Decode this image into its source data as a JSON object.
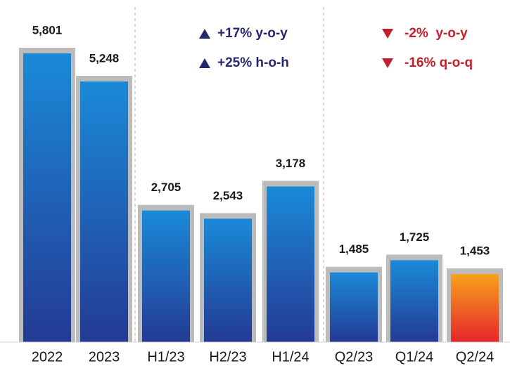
{
  "chart_data": {
    "type": "bar",
    "categories": [
      "2022",
      "2023",
      "H1/23",
      "H2/23",
      "H1/24",
      "Q2/23",
      "Q1/24",
      "Q2/24"
    ],
    "values": [
      5801,
      5248,
      2705,
      2543,
      3178,
      1485,
      1725,
      1453
    ],
    "value_labels": [
      "5,801",
      "5,248",
      "2,705",
      "2,543",
      "3,178",
      "1,485",
      "1,725",
      "1,453"
    ],
    "colors": [
      "#1a8ad8",
      "#1a8ad8",
      "#1a8ad8",
      "#1a8ad8",
      "#1a8ad8",
      "#1a8ad8",
      "#1a8ad8",
      "#f7a21c"
    ],
    "bottom_colors": [
      "#243a94",
      "#243a94",
      "#243a94",
      "#243a94",
      "#243a94",
      "#243a94",
      "#243a94",
      "#e6252b"
    ],
    "annotations": [
      "+17% y-o-y",
      "+25% h-o-h",
      "-2%  y-o-y",
      "-16% q-o-q"
    ]
  }
}
